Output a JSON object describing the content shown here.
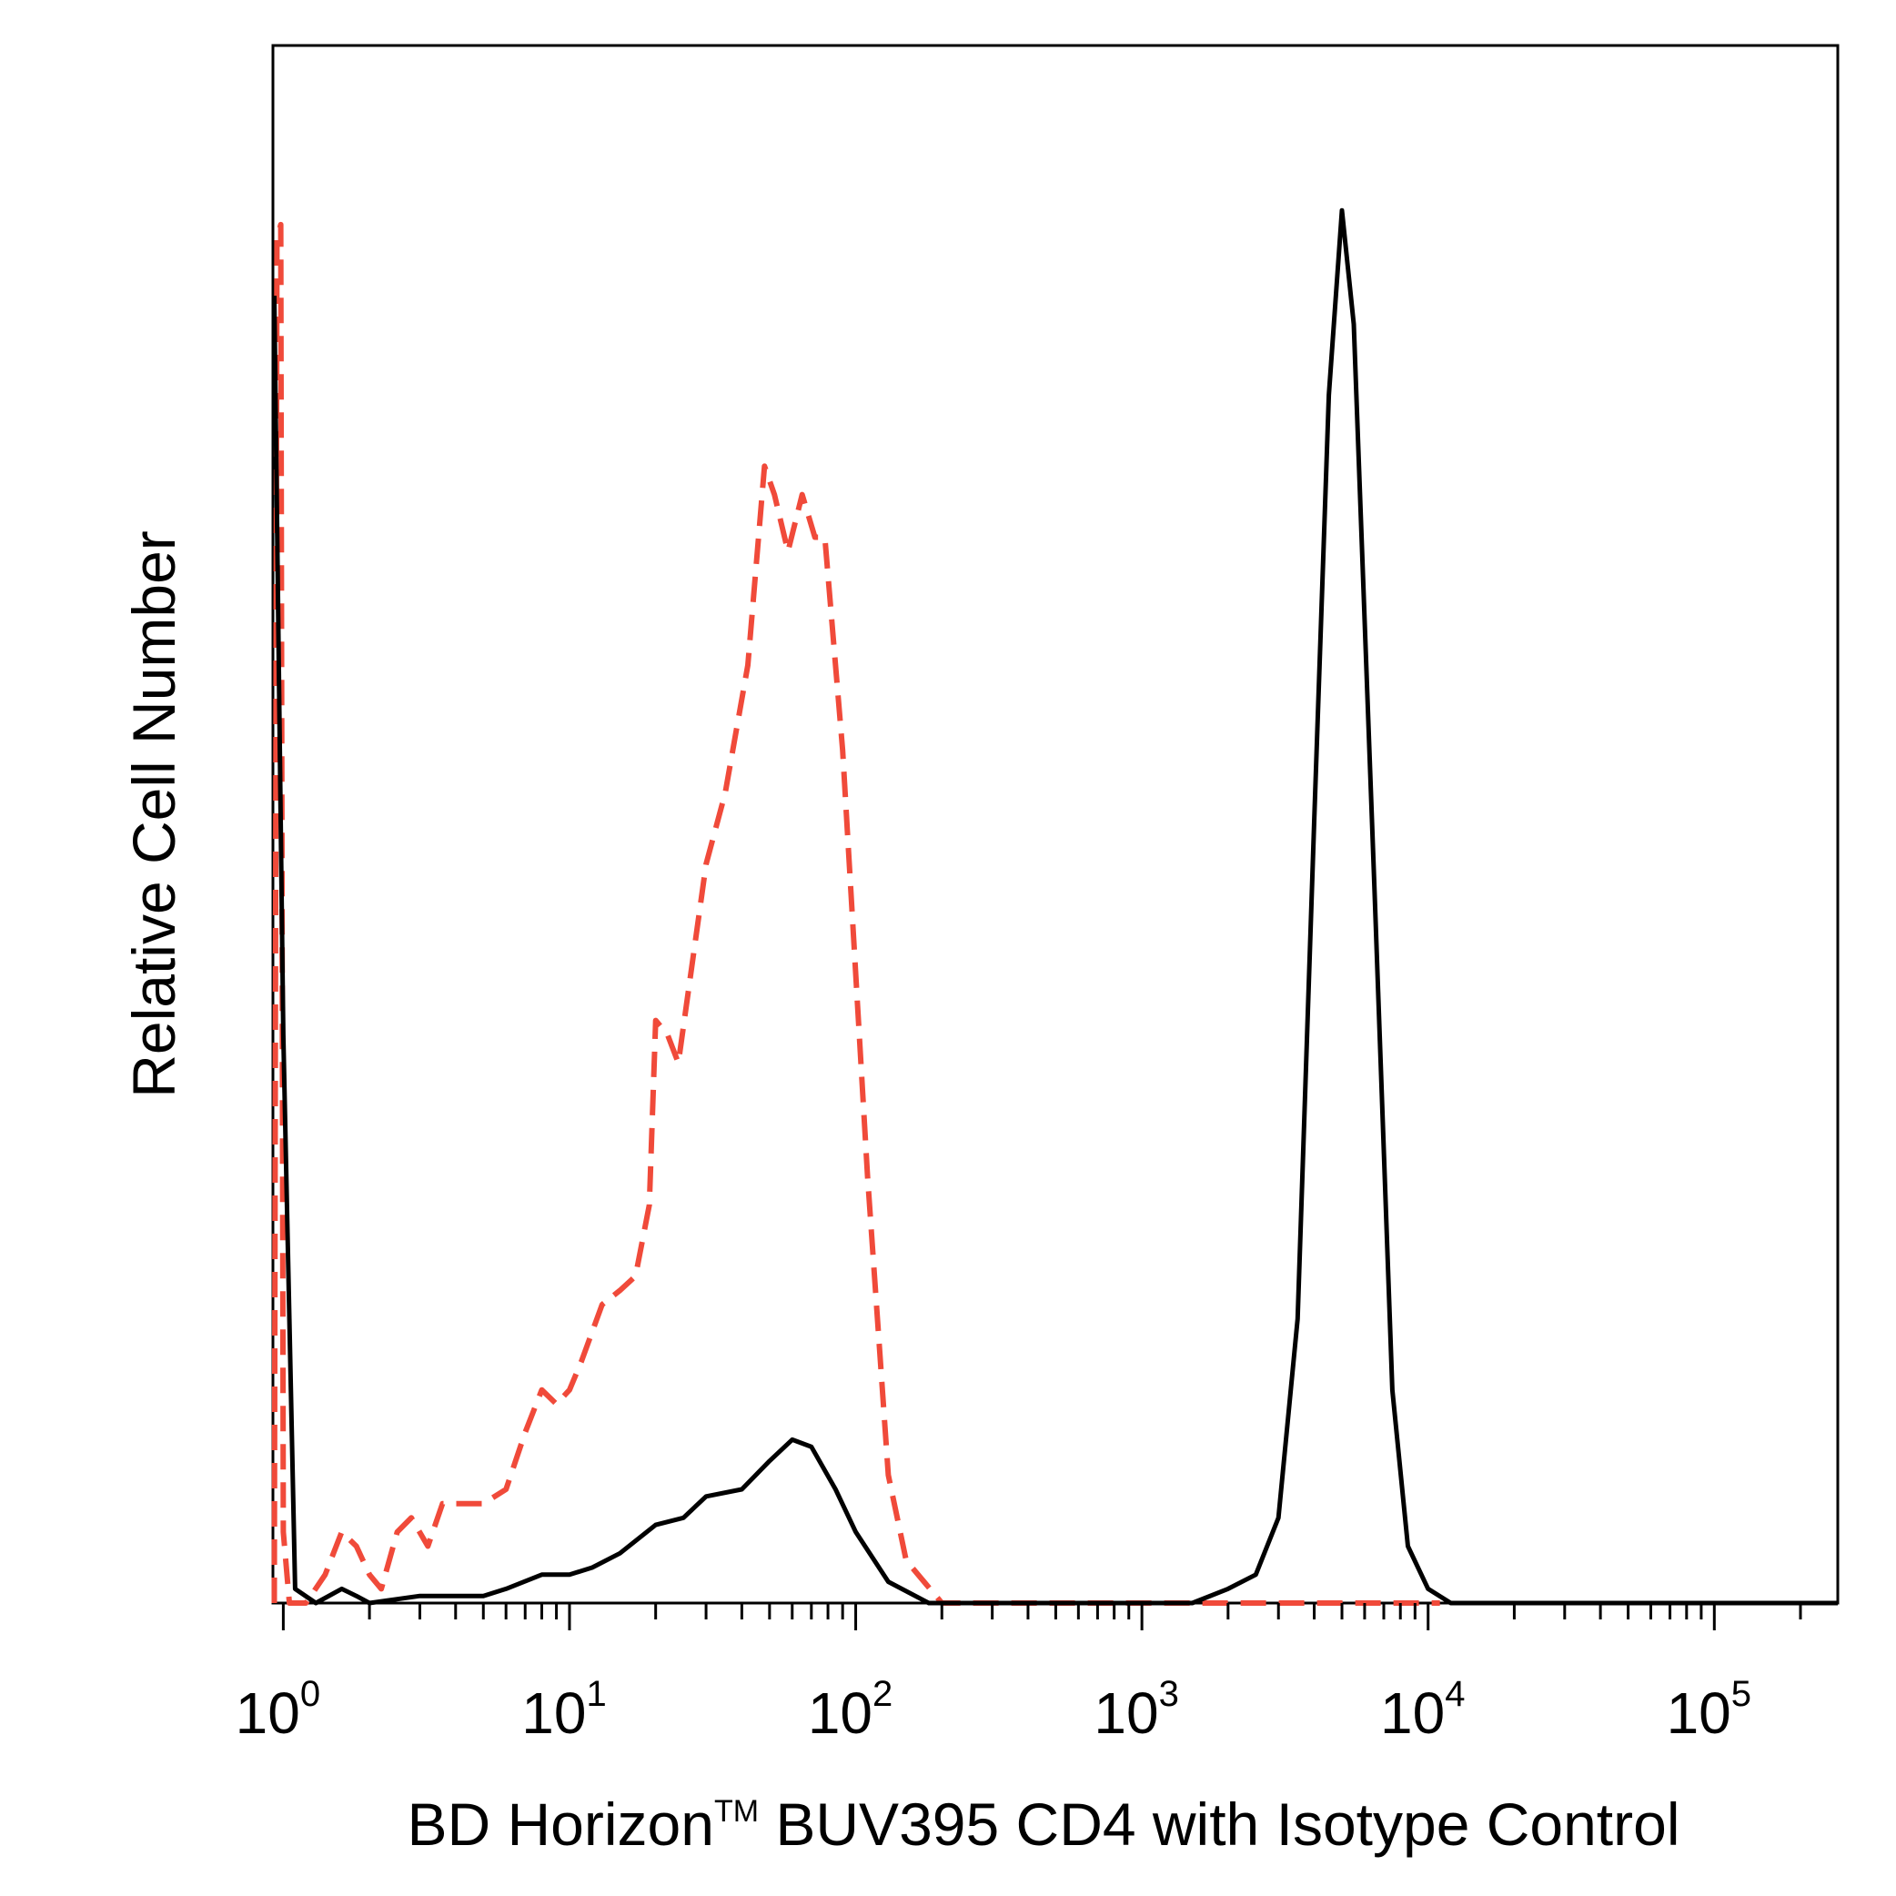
{
  "chart_data": {
    "type": "line",
    "title": "",
    "xlabel": {
      "pre": "BD Horizon",
      "tm": "TM",
      "post": " BUV395 CD4 with Isotype Control"
    },
    "ylabel": "Relative Cell Number",
    "xscale": "log",
    "xlim": [
      0.92,
      270000
    ],
    "ylim": [
      0,
      1
    ],
    "grid": false,
    "legend": "none",
    "x_ticks": [
      {
        "base": "10",
        "exp": "0",
        "value": 1
      },
      {
        "base": "10",
        "exp": "1",
        "value": 10
      },
      {
        "base": "10",
        "exp": "2",
        "value": 100
      },
      {
        "base": "10",
        "exp": "3",
        "value": 1000
      },
      {
        "base": "10",
        "exp": "4",
        "value": 10000
      },
      {
        "base": "10",
        "exp": "5",
        "value": 100000
      }
    ],
    "series": [
      {
        "color": "#f04a3a",
        "style": "dashed",
        "points": [
          [
            0.93,
            0.0
          ],
          [
            0.95,
            0.96
          ],
          [
            0.98,
            0.97
          ],
          [
            1.0,
            0.05
          ],
          [
            1.05,
            0.0
          ],
          [
            1.2,
            0.0
          ],
          [
            1.4,
            0.02
          ],
          [
            1.6,
            0.05
          ],
          [
            1.8,
            0.04
          ],
          [
            2.0,
            0.02
          ],
          [
            2.2,
            0.01
          ],
          [
            2.5,
            0.05
          ],
          [
            2.8,
            0.06
          ],
          [
            3.2,
            0.04
          ],
          [
            3.6,
            0.07
          ],
          [
            4.0,
            0.07
          ],
          [
            5.0,
            0.07
          ],
          [
            6.0,
            0.08
          ],
          [
            7.0,
            0.12
          ],
          [
            8.0,
            0.15
          ],
          [
            9.0,
            0.14
          ],
          [
            10.0,
            0.15
          ],
          [
            11.0,
            0.17
          ],
          [
            13.0,
            0.21
          ],
          [
            15.0,
            0.22
          ],
          [
            17.0,
            0.23
          ],
          [
            19.0,
            0.28
          ],
          [
            20.0,
            0.41
          ],
          [
            22.0,
            0.4
          ],
          [
            24.0,
            0.38
          ],
          [
            26.0,
            0.43
          ],
          [
            30.0,
            0.52
          ],
          [
            35.0,
            0.57
          ],
          [
            42.0,
            0.66
          ],
          [
            48.0,
            0.8
          ],
          [
            52.0,
            0.78
          ],
          [
            58.0,
            0.74
          ],
          [
            65.0,
            0.78
          ],
          [
            72.0,
            0.75
          ],
          [
            78.0,
            0.75
          ],
          [
            90.0,
            0.6
          ],
          [
            110.0,
            0.3
          ],
          [
            130.0,
            0.09
          ],
          [
            150.0,
            0.03
          ],
          [
            200.0,
            0.0
          ],
          [
            1000.0,
            0.0
          ],
          [
            11000.0,
            0.0
          ]
        ]
      },
      {
        "color": "#000000",
        "style": "solid",
        "points": [
          [
            0.93,
            0.92
          ],
          [
            1.0,
            0.4
          ],
          [
            1.1,
            0.01
          ],
          [
            1.3,
            0.0
          ],
          [
            1.6,
            0.01
          ],
          [
            1.8,
            0.005
          ],
          [
            2.0,
            0.0
          ],
          [
            3.0,
            0.005
          ],
          [
            5.0,
            0.005
          ],
          [
            6.0,
            0.01
          ],
          [
            8.0,
            0.02
          ],
          [
            10.0,
            0.02
          ],
          [
            12.0,
            0.025
          ],
          [
            15.0,
            0.035
          ],
          [
            20.0,
            0.055
          ],
          [
            25.0,
            0.06
          ],
          [
            30.0,
            0.075
          ],
          [
            40.0,
            0.08
          ],
          [
            50.0,
            0.1
          ],
          [
            60.0,
            0.115
          ],
          [
            70.0,
            0.11
          ],
          [
            85.0,
            0.08
          ],
          [
            100.0,
            0.05
          ],
          [
            130.0,
            0.015
          ],
          [
            180.0,
            0.0
          ],
          [
            1500.0,
            0.0
          ],
          [
            2000.0,
            0.01
          ],
          [
            2500.0,
            0.02
          ],
          [
            3000.0,
            0.06
          ],
          [
            3500.0,
            0.2
          ],
          [
            4000.0,
            0.55
          ],
          [
            4500.0,
            0.85
          ],
          [
            5000.0,
            0.98
          ],
          [
            5500.0,
            0.9
          ],
          [
            6500.0,
            0.5
          ],
          [
            7500.0,
            0.15
          ],
          [
            8500.0,
            0.04
          ],
          [
            10000.0,
            0.01
          ],
          [
            12000.0,
            0.0
          ],
          [
            270000.0,
            0.0
          ]
        ]
      }
    ]
  }
}
